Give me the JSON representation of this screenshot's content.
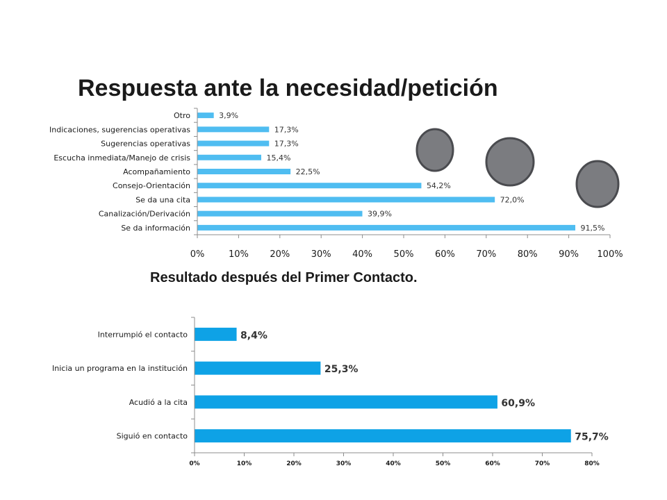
{
  "chart_data": [
    {
      "type": "bar",
      "orientation": "horizontal",
      "title": "Respuesta ante la necesidad/petición",
      "categories": [
        "Otro",
        "Indicaciones, sugerencias operativas",
        "Sugerencias operativas",
        "Escucha inmediata/Manejo de crisis",
        "Acompañamiento",
        "Consejo-Orientación",
        "Se da una cita",
        "Canalización/Derivación",
        "Se da información"
      ],
      "values": [
        3.9,
        17.3,
        17.3,
        15.4,
        22.5,
        54.2,
        72.0,
        39.9,
        91.5
      ],
      "value_labels": [
        "3,9%",
        "17,3%",
        "17,3%",
        "15,4%",
        "22,5%",
        "54,2%",
        "72,0%",
        "39,9%",
        "91,5%"
      ],
      "xlim": [
        0,
        100
      ],
      "ticks": [
        "0%",
        "10%",
        "20%",
        "30%",
        "40%",
        "50%",
        "60%",
        "70%",
        "80%",
        "90%",
        "100%"
      ],
      "bar_color": "#4fbdf1",
      "grid": false,
      "legend": "none"
    },
    {
      "type": "bar",
      "orientation": "horizontal",
      "title": "Resultado  después del Primer Contacto.",
      "categories": [
        "Interrumpió el contacto",
        "Inicia un programa en la institución",
        "Acudió a la cita",
        "Siguió en contacto"
      ],
      "values": [
        8.4,
        25.3,
        60.9,
        75.7
      ],
      "value_labels": [
        "8,4%",
        "25,3%",
        "60,9%",
        "75,7%"
      ],
      "xlim": [
        0,
        80
      ],
      "ticks": [
        "0%",
        "10%",
        "20%",
        "30%",
        "40%",
        "50%",
        "60%",
        "70%",
        "80%"
      ],
      "bar_color": "#0ea2e6",
      "grid": false,
      "legend": "none"
    }
  ],
  "decorations": {
    "circle_fill": "#7b7c80",
    "circle_stroke": "#4a4b4f"
  }
}
